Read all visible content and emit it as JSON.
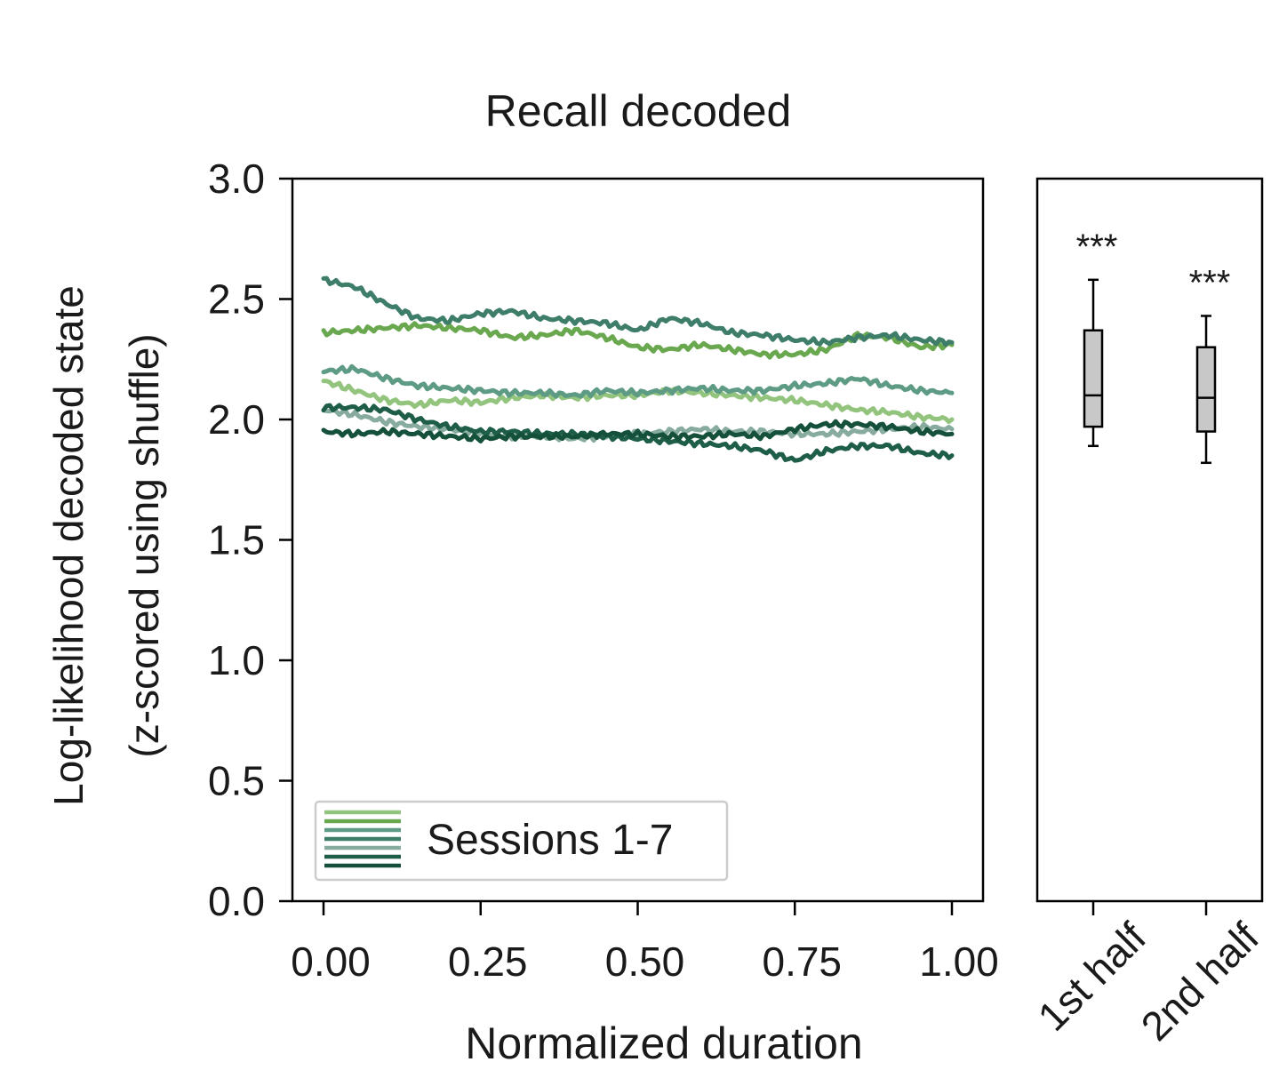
{
  "chart_data": [
    {
      "type": "line",
      "title": "Recall decoded",
      "xlabel": "Normalized duration",
      "ylabel": [
        "Log-likelihood decoded state",
        "(z-scored using shuffle)"
      ],
      "xlim": [
        0.0,
        1.0
      ],
      "ylim": [
        0.0,
        3.0
      ],
      "xticks": [
        "0.00",
        "0.25",
        "0.50",
        "0.75",
        "1.00"
      ],
      "yticks": [
        "0.0",
        "0.5",
        "1.0",
        "1.5",
        "2.0",
        "2.5",
        "3.0"
      ],
      "grid": false,
      "legend": {
        "label": "Sessions 1-7",
        "placement": "lower-left"
      },
      "series_colors": [
        "#93c47d",
        "#6aa84f",
        "#5e9b84",
        "#3d7d6a",
        "#87ab9e",
        "#1e5e48",
        "#14503a"
      ],
      "series": [
        {
          "x": [
            0,
            0.05,
            0.1,
            0.15,
            0.2,
            0.25,
            0.3,
            0.35,
            0.4,
            0.45,
            0.5,
            0.55,
            0.6,
            0.65,
            0.7,
            0.75,
            0.8,
            0.85,
            0.9,
            0.95,
            1.0
          ],
          "values": [
            2.16,
            2.12,
            2.08,
            2.06,
            2.08,
            2.07,
            2.09,
            2.1,
            2.09,
            2.1,
            2.1,
            2.12,
            2.11,
            2.1,
            2.09,
            2.08,
            2.06,
            2.04,
            2.03,
            2.01,
            2.0
          ]
        },
        {
          "x": [
            0,
            0.05,
            0.1,
            0.15,
            0.2,
            0.25,
            0.3,
            0.35,
            0.4,
            0.45,
            0.5,
            0.55,
            0.6,
            0.65,
            0.7,
            0.75,
            0.8,
            0.85,
            0.9,
            0.95,
            1.0
          ],
          "values": [
            2.36,
            2.37,
            2.38,
            2.39,
            2.38,
            2.37,
            2.34,
            2.35,
            2.37,
            2.34,
            2.3,
            2.29,
            2.31,
            2.29,
            2.27,
            2.27,
            2.29,
            2.35,
            2.34,
            2.3,
            2.31
          ]
        },
        {
          "x": [
            0,
            0.05,
            0.1,
            0.15,
            0.2,
            0.25,
            0.3,
            0.35,
            0.4,
            0.45,
            0.5,
            0.55,
            0.6,
            0.65,
            0.7,
            0.75,
            0.8,
            0.85,
            0.9,
            0.95,
            1.0
          ],
          "values": [
            2.2,
            2.21,
            2.17,
            2.14,
            2.13,
            2.12,
            2.11,
            2.11,
            2.1,
            2.12,
            2.11,
            2.12,
            2.13,
            2.12,
            2.12,
            2.14,
            2.15,
            2.17,
            2.14,
            2.12,
            2.11
          ]
        },
        {
          "x": [
            0,
            0.05,
            0.1,
            0.15,
            0.2,
            0.25,
            0.3,
            0.35,
            0.4,
            0.45,
            0.5,
            0.55,
            0.6,
            0.65,
            0.7,
            0.75,
            0.8,
            0.85,
            0.9,
            0.95,
            1.0
          ],
          "values": [
            2.58,
            2.55,
            2.48,
            2.42,
            2.41,
            2.44,
            2.45,
            2.42,
            2.41,
            2.4,
            2.37,
            2.42,
            2.4,
            2.36,
            2.35,
            2.33,
            2.32,
            2.34,
            2.35,
            2.33,
            2.32
          ]
        },
        {
          "x": [
            0,
            0.05,
            0.1,
            0.15,
            0.2,
            0.25,
            0.3,
            0.35,
            0.4,
            0.45,
            0.5,
            0.55,
            0.6,
            0.65,
            0.7,
            0.75,
            0.8,
            0.85,
            0.9,
            0.95,
            1.0
          ],
          "values": [
            2.04,
            2.02,
            1.99,
            1.97,
            1.96,
            1.94,
            1.93,
            1.93,
            1.92,
            1.93,
            1.94,
            1.95,
            1.96,
            1.95,
            1.95,
            1.94,
            1.94,
            1.95,
            1.96,
            1.97,
            1.96
          ]
        },
        {
          "x": [
            0,
            0.05,
            0.1,
            0.15,
            0.2,
            0.25,
            0.3,
            0.35,
            0.4,
            0.45,
            0.5,
            0.55,
            0.6,
            0.65,
            0.7,
            0.75,
            0.8,
            0.85,
            0.9,
            0.95,
            1.0
          ],
          "values": [
            2.05,
            2.05,
            2.04,
            2.0,
            1.97,
            1.95,
            1.95,
            1.94,
            1.94,
            1.93,
            1.92,
            1.91,
            1.9,
            1.89,
            1.87,
            1.83,
            1.87,
            1.89,
            1.89,
            1.86,
            1.85
          ]
        },
        {
          "x": [
            0,
            0.05,
            0.1,
            0.15,
            0.2,
            0.25,
            0.3,
            0.35,
            0.4,
            0.45,
            0.5,
            0.55,
            0.6,
            0.65,
            0.7,
            0.75,
            0.8,
            0.85,
            0.9,
            0.95,
            1.0
          ],
          "values": [
            1.95,
            1.94,
            1.95,
            1.94,
            1.93,
            1.92,
            1.93,
            1.93,
            1.93,
            1.94,
            1.94,
            1.93,
            1.93,
            1.94,
            1.93,
            1.96,
            1.98,
            1.98,
            1.97,
            1.95,
            1.94
          ]
        }
      ]
    },
    {
      "type": "box",
      "categories": [
        "1st half",
        "2nd half"
      ],
      "ylim": [
        0.0,
        3.0
      ],
      "boxes": [
        {
          "whisker_low": 1.89,
          "q1": 1.97,
          "median": 2.1,
          "q3": 2.37,
          "whisker_high": 2.58,
          "annotation": "***"
        },
        {
          "whisker_low": 1.82,
          "q1": 1.95,
          "median": 2.09,
          "q3": 2.3,
          "whisker_high": 2.43,
          "annotation": "***"
        }
      ],
      "box_color": "#c8c8c8"
    }
  ]
}
